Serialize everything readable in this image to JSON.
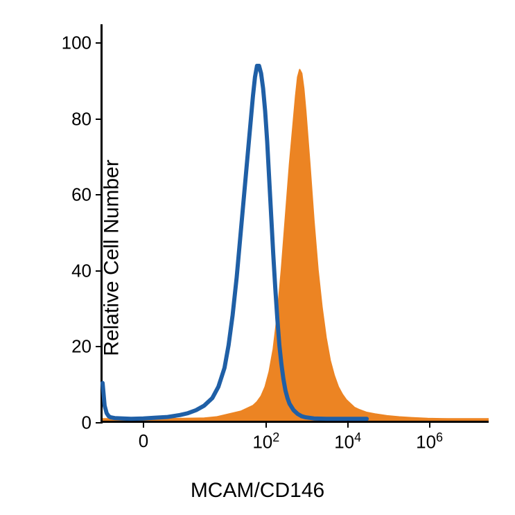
{
  "chart": {
    "type": "histogram",
    "background_color": "#ffffff",
    "axis_color": "#000000",
    "x_label": "MCAM/CD146",
    "y_label": "Relative Cell Number",
    "label_fontsize": 30,
    "tick_fontsize": 26,
    "y_axis": {
      "min": 0,
      "max": 105,
      "ticks": [
        0,
        20,
        40,
        60,
        80,
        100
      ],
      "tick_labels": [
        "0",
        "20",
        "40",
        "60",
        "80",
        "100"
      ]
    },
    "x_axis": {
      "scale": "biexponential",
      "min": -2,
      "max": 7.5,
      "ticks": [
        -1,
        2,
        4,
        6
      ],
      "tick_labels_html": [
        "0",
        "10<sup>2</sup>",
        "10<sup>4</sup>",
        "10<sup>6</sup>"
      ]
    },
    "series": [
      {
        "name": "filled-histogram",
        "color": "#ec8423",
        "fill": true,
        "fill_opacity": 1.0,
        "line_width": 2,
        "points": [
          [
            -2,
            0.5
          ],
          [
            -1.5,
            0.5
          ],
          [
            -1.2,
            0.5
          ],
          [
            -1.0,
            0.5
          ],
          [
            -0.5,
            0.5
          ],
          [
            0.0,
            0.6
          ],
          [
            0.5,
            0.7
          ],
          [
            0.8,
            1.0
          ],
          [
            1.0,
            1.5
          ],
          [
            1.2,
            2.0
          ],
          [
            1.4,
            2.5
          ],
          [
            1.5,
            3.0
          ],
          [
            1.6,
            3.5
          ],
          [
            1.7,
            4.0
          ],
          [
            1.8,
            5.0
          ],
          [
            1.9,
            6.5
          ],
          [
            2.0,
            9.0
          ],
          [
            2.1,
            13.0
          ],
          [
            2.2,
            19.0
          ],
          [
            2.3,
            28.0
          ],
          [
            2.4,
            40.0
          ],
          [
            2.5,
            54.0
          ],
          [
            2.6,
            68.0
          ],
          [
            2.7,
            80.0
          ],
          [
            2.75,
            86.0
          ],
          [
            2.8,
            91.0
          ],
          [
            2.85,
            93.0
          ],
          [
            2.9,
            92.0
          ],
          [
            2.95,
            88.0
          ],
          [
            3.0,
            82.0
          ],
          [
            3.1,
            68.0
          ],
          [
            3.2,
            53.0
          ],
          [
            3.3,
            40.0
          ],
          [
            3.4,
            30.0
          ],
          [
            3.5,
            22.0
          ],
          [
            3.6,
            16.0
          ],
          [
            3.7,
            12.0
          ],
          [
            3.8,
            9.0
          ],
          [
            3.9,
            7.0
          ],
          [
            4.0,
            5.5
          ],
          [
            4.1,
            4.5
          ],
          [
            4.2,
            3.5
          ],
          [
            4.3,
            3.0
          ],
          [
            4.5,
            2.2
          ],
          [
            4.7,
            1.8
          ],
          [
            5.0,
            1.3
          ],
          [
            5.3,
            1.0
          ],
          [
            5.6,
            0.8
          ],
          [
            6.0,
            0.6
          ],
          [
            6.5,
            0.5
          ],
          [
            7.0,
            0.5
          ],
          [
            7.5,
            0.5
          ]
        ]
      },
      {
        "name": "open-histogram",
        "color": "#1f5fa6",
        "fill": false,
        "line_width": 6,
        "points": [
          [
            -2,
            10.0
          ],
          [
            -1.95,
            4.0
          ],
          [
            -1.9,
            2.0
          ],
          [
            -1.85,
            1.2
          ],
          [
            -1.8,
            0.9
          ],
          [
            -1.7,
            0.7
          ],
          [
            -1.5,
            0.6
          ],
          [
            -1.3,
            0.5
          ],
          [
            -1.0,
            0.6
          ],
          [
            -0.7,
            0.8
          ],
          [
            -0.4,
            1.0
          ],
          [
            -0.1,
            1.5
          ],
          [
            0.1,
            2.0
          ],
          [
            0.3,
            2.8
          ],
          [
            0.5,
            4.0
          ],
          [
            0.7,
            6.0
          ],
          [
            0.85,
            9.0
          ],
          [
            1.0,
            14.0
          ],
          [
            1.1,
            20.0
          ],
          [
            1.2,
            28.0
          ],
          [
            1.3,
            38.0
          ],
          [
            1.4,
            50.0
          ],
          [
            1.5,
            62.0
          ],
          [
            1.6,
            74.0
          ],
          [
            1.65,
            80.0
          ],
          [
            1.7,
            86.0
          ],
          [
            1.75,
            91.0
          ],
          [
            1.8,
            94.0
          ],
          [
            1.85,
            94.0
          ],
          [
            1.9,
            92.0
          ],
          [
            1.95,
            88.0
          ],
          [
            2.0,
            82.0
          ],
          [
            2.05,
            74.0
          ],
          [
            2.1,
            64.0
          ],
          [
            2.15,
            54.0
          ],
          [
            2.2,
            44.0
          ],
          [
            2.25,
            35.0
          ],
          [
            2.3,
            27.0
          ],
          [
            2.35,
            20.0
          ],
          [
            2.4,
            15.0
          ],
          [
            2.45,
            11.0
          ],
          [
            2.5,
            8.0
          ],
          [
            2.55,
            6.0
          ],
          [
            2.6,
            4.5
          ],
          [
            2.7,
            2.8
          ],
          [
            2.8,
            1.8
          ],
          [
            2.9,
            1.2
          ],
          [
            3.0,
            0.9
          ],
          [
            3.2,
            0.6
          ],
          [
            3.5,
            0.5
          ],
          [
            4.0,
            0.5
          ],
          [
            4.5,
            0.5
          ]
        ]
      }
    ]
  }
}
